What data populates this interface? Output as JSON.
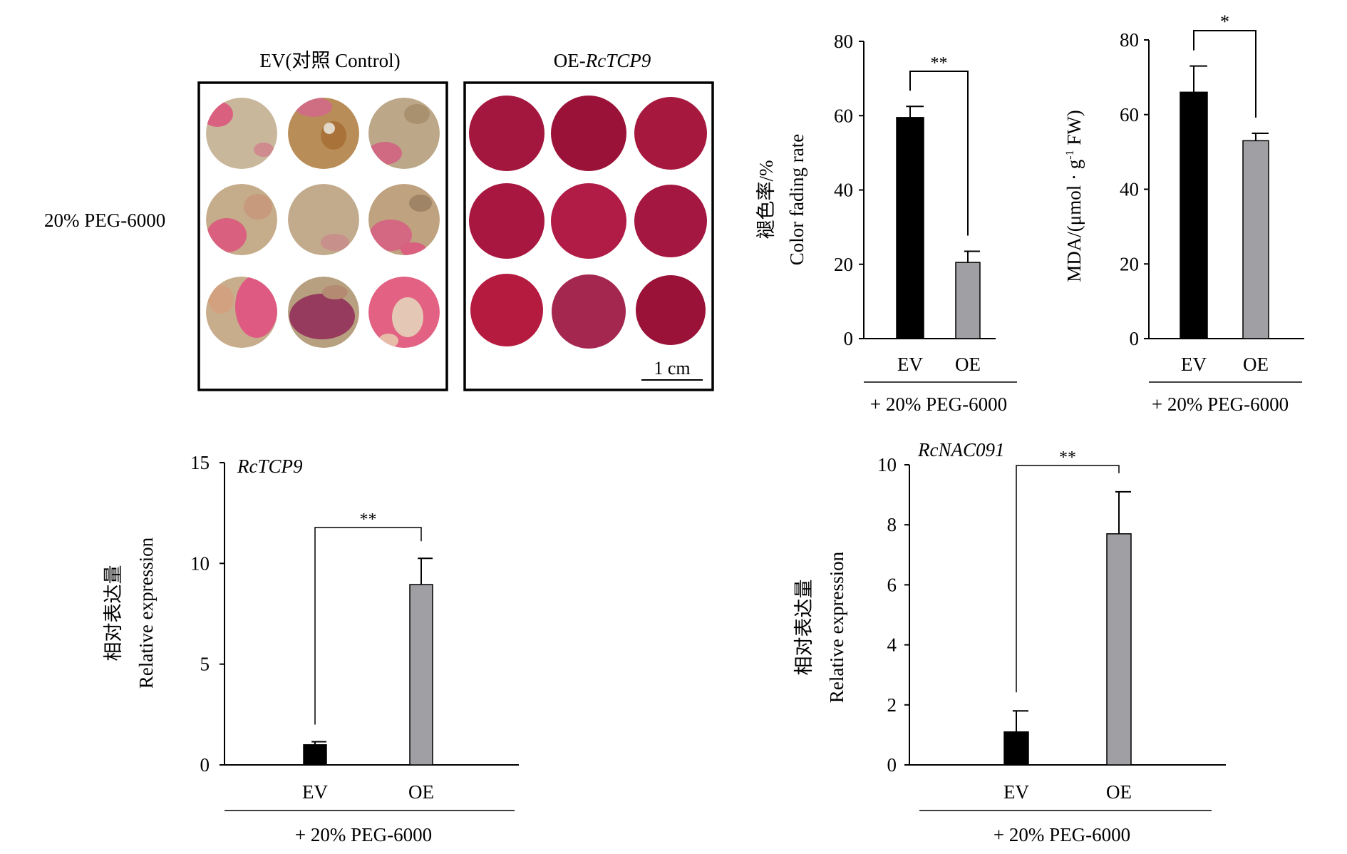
{
  "photo_panel": {
    "left_title": "EV(对照 Control)",
    "right_title_prefix": "OE-",
    "right_title_gene": "RcTCP9",
    "treatment_label": "20% PEG-6000",
    "scale_bar_label": "1 cm",
    "colors": {
      "ev_disc_base": "#c9b79c",
      "ev_disc_pink": "#d9607e",
      "oe_disc": "#a8163f",
      "frame": "#000000"
    }
  },
  "chart_data": [
    {
      "id": "color-fading",
      "type": "bar",
      "title": "",
      "ylabel_cn": "褪色率/%",
      "ylabel_en": "Color fading rate",
      "categories": [
        "EV",
        "OE"
      ],
      "values": [
        59.5,
        20.5
      ],
      "errors": [
        3,
        3
      ],
      "colors": [
        "#000000",
        "#a0a0a4"
      ],
      "ylim": [
        0,
        80
      ],
      "yticks": [
        0,
        20,
        40,
        60,
        80
      ],
      "significance": "**",
      "group_label": "+ 20% PEG-6000",
      "grid": false
    },
    {
      "id": "mda",
      "type": "bar",
      "title": "",
      "ylabel_en": "MDA/(μmol · g-1 FW)",
      "categories": [
        "EV",
        "OE"
      ],
      "values": [
        66,
        53
      ],
      "errors": [
        7,
        2
      ],
      "colors": [
        "#000000",
        "#a0a0a4"
      ],
      "ylim": [
        0,
        80
      ],
      "yticks": [
        0,
        20,
        40,
        60,
        80
      ],
      "significance": "*",
      "group_label": "+ 20% PEG-6000",
      "grid": false
    },
    {
      "id": "rctcp9-expression",
      "type": "bar",
      "title": "RcTCP9",
      "ylabel_cn": "相对表达量",
      "ylabel_en": "Relative expression",
      "categories": [
        "EV",
        "OE"
      ],
      "values": [
        1.0,
        8.95
      ],
      "errors": [
        0.15,
        1.3
      ],
      "colors": [
        "#000000",
        "#a0a0a4"
      ],
      "ylim": [
        0,
        15
      ],
      "yticks": [
        0,
        5,
        10,
        15
      ],
      "significance": "**",
      "group_label": "+ 20% PEG-6000",
      "grid": false
    },
    {
      "id": "rcnac091-expression",
      "type": "bar",
      "title": "RcNAC091",
      "ylabel_cn": "相对表达量",
      "ylabel_en": "Relative expression",
      "categories": [
        "EV",
        "OE"
      ],
      "values": [
        1.1,
        7.7
      ],
      "errors": [
        0.7,
        1.4
      ],
      "colors": [
        "#000000",
        "#a0a0a4"
      ],
      "ylim": [
        0,
        10
      ],
      "yticks": [
        0,
        2,
        4,
        6,
        8,
        10
      ],
      "significance": "**",
      "group_label": "+ 20% PEG-6000",
      "grid": false
    }
  ]
}
